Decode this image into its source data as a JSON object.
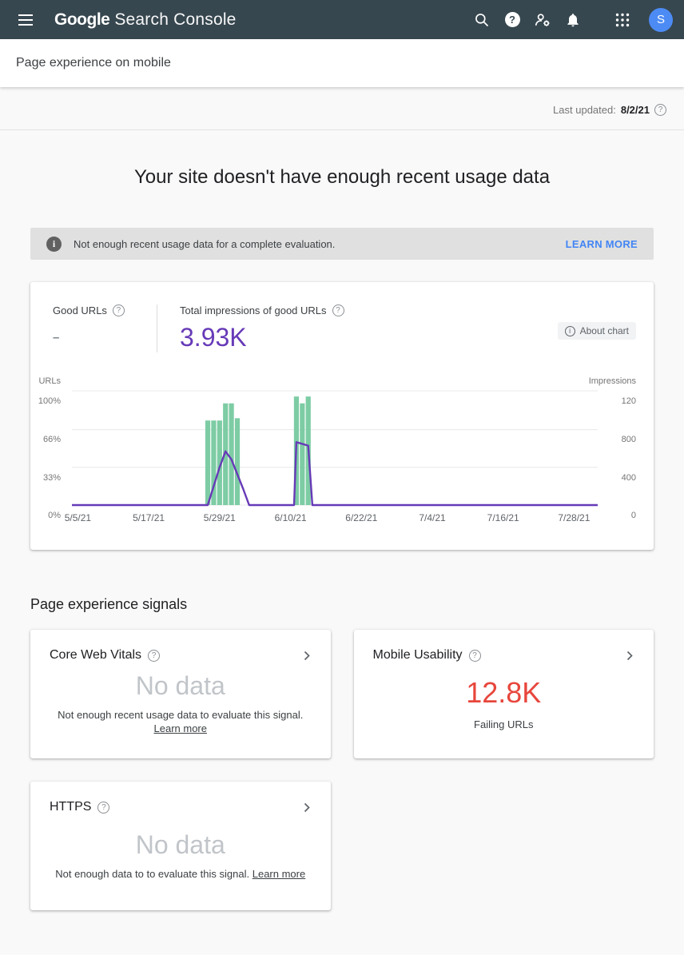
{
  "appbar": {
    "logo_primary": "Google",
    "logo_secondary": "Search Console",
    "avatar_letter": "S",
    "icons": [
      "menu-icon",
      "search-icon",
      "help-icon",
      "manage-users-icon",
      "notifications-icon",
      "apps-grid-icon",
      "avatar"
    ]
  },
  "breadcrumb": {
    "title": "Page experience on mobile"
  },
  "meta": {
    "last_updated_label": "Last updated:",
    "last_updated_value": "8/2/21"
  },
  "hero": {
    "title": "Your site doesn't have enough recent usage data"
  },
  "banner": {
    "message": "Not enough recent usage data for a complete evaluation.",
    "action": "LEARN MORE"
  },
  "chart_card": {
    "good_urls_label": "Good URLs",
    "good_urls_value": "–",
    "impressions_label": "Total impressions of good URLs",
    "impressions_value": "3.93K",
    "about_chart": "About chart"
  },
  "chart_data": {
    "type": "bar+line",
    "title": "Good URLs and total impressions of good URLs over time",
    "x_ticks": [
      "5/5/21",
      "5/17/21",
      "5/29/21",
      "6/10/21",
      "6/22/21",
      "7/4/21",
      "7/16/21",
      "7/28/21"
    ],
    "x_tick_days": [
      0,
      12,
      24,
      36,
      48,
      60,
      72,
      84
    ],
    "x_domain_days": 89,
    "grid": true,
    "left_axis": {
      "label": "URLs",
      "ticks": [
        "100%",
        "66%",
        "33%",
        "0%"
      ],
      "range": [
        0,
        100
      ]
    },
    "right_axis": {
      "label": "Impressions",
      "ticks": [
        "120",
        "800",
        "400",
        "0"
      ],
      "range": [
        0,
        1200
      ]
    },
    "series": [
      {
        "name": "Good URLs",
        "kind": "bar",
        "axis": "left",
        "unit": "% of URLs",
        "color": "#7dcca4",
        "points": [
          {
            "date": "5/27/21",
            "day": 22,
            "pct": 74
          },
          {
            "date": "5/28/21",
            "day": 23,
            "pct": 74
          },
          {
            "date": "5/29/21",
            "day": 24,
            "pct": 74
          },
          {
            "date": "5/30/21",
            "day": 25,
            "pct": 89
          },
          {
            "date": "5/31/21",
            "day": 26,
            "pct": 89
          },
          {
            "date": "6/1/21",
            "day": 27,
            "pct": 76
          },
          {
            "date": "6/11/21",
            "day": 37,
            "pct": 95
          },
          {
            "date": "6/12/21",
            "day": 38,
            "pct": 89
          },
          {
            "date": "6/13/21",
            "day": 39,
            "pct": 95
          }
        ]
      },
      {
        "name": "Total impressions of good URLs",
        "kind": "line",
        "axis": "right",
        "unit": "% of axis height",
        "color": "#673ab7",
        "points": [
          {
            "date": "5/5/21",
            "day": 0,
            "pct": 0
          },
          {
            "date": "5/27/21",
            "day": 22,
            "pct": 0
          },
          {
            "date": "5/29/21",
            "day": 24,
            "pct": 33
          },
          {
            "date": "5/30/21",
            "day": 25,
            "pct": 47
          },
          {
            "date": "5/31/21",
            "day": 26,
            "pct": 40
          },
          {
            "date": "6/2/21",
            "day": 28,
            "pct": 14
          },
          {
            "date": "6/3/21",
            "day": 29,
            "pct": 0
          },
          {
            "date": "6/10/21",
            "day": 36.6,
            "pct": 0
          },
          {
            "date": "6/11/21",
            "day": 37,
            "pct": 55
          },
          {
            "date": "6/13/21",
            "day": 39,
            "pct": 52
          },
          {
            "date": "6/14/21",
            "day": 39.7,
            "pct": 0
          },
          {
            "date": "8/1/21",
            "day": 88,
            "pct": 0
          }
        ]
      }
    ]
  },
  "signals": {
    "heading": "Page experience signals",
    "cards": [
      {
        "title": "Core Web Vitals",
        "value": "No data",
        "value_style": "empty",
        "caption": "Not enough recent usage data to evaluate this signal.",
        "link": "Learn more"
      },
      {
        "title": "Mobile Usability",
        "value": "12.8K",
        "value_style": "error",
        "caption": "Failing URLs",
        "link": ""
      },
      {
        "title": "HTTPS",
        "value": "No data",
        "value_style": "empty",
        "caption": "Not enough data to to evaluate this signal.",
        "link": "Learn more"
      }
    ]
  },
  "colors": {
    "appbar": "#37474f",
    "accent_blue": "#4285f4",
    "avatar_blue": "#4c8bf4",
    "purple": "#673ab7",
    "bar_green": "#7dcca4",
    "error_red": "#e8463c",
    "banner_gray": "#e0e0e0"
  }
}
